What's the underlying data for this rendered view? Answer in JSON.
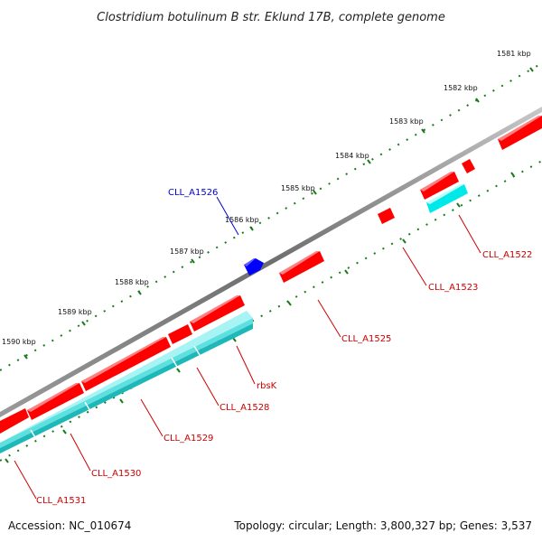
{
  "title": "Clostridium botulinum B str. Eklund 17B, complete genome",
  "footer": {
    "accession": "Accession: NC_010674",
    "topology": "Topology: circular; Length: 3,800,327 bp; Genes: 3,537"
  },
  "colors": {
    "forward_gene": "#ff0000",
    "reverse_gene": "#0000ff",
    "orf": "#00e0e0",
    "backbone": "#808080",
    "ticks": "#1a7a1a",
    "label_red": "#cc0000",
    "label_blue": "#0000cc"
  },
  "scale_labels": [
    "1581 kbp",
    "1582 kbp",
    "1583 kbp",
    "1584 kbp",
    "1585 kbp",
    "1586 kbp",
    "1587 kbp",
    "1588 kbp",
    "1589 kbp",
    "1590 kbp"
  ],
  "gene_labels": [
    "CLL_A1522",
    "CLL_A1523",
    "CLL_A1525",
    "rbsK",
    "CLL_A1528",
    "CLL_A1529",
    "CLL_A1530",
    "CLL_A1531",
    "CLL_A1526"
  ]
}
